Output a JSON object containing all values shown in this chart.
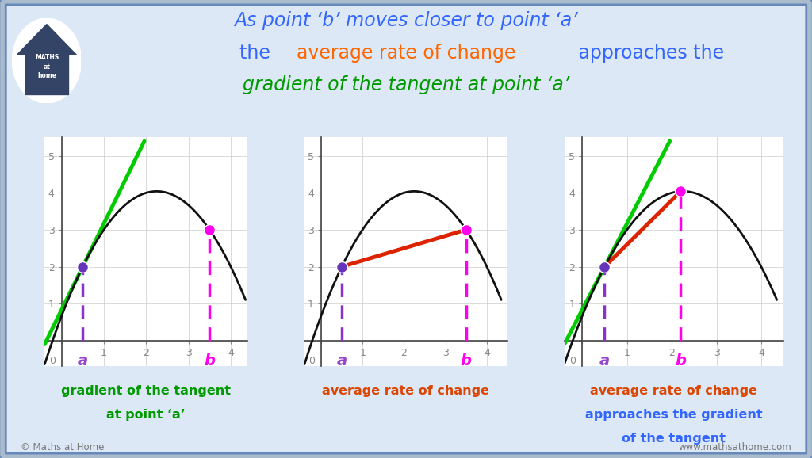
{
  "bg_color": "#dce8f5",
  "plot_bg": "#ffffff",
  "border_color": "#6688bb",
  "curve_color": "#111111",
  "tangent_color": "#00cc00",
  "secant_color": "#dd2200",
  "point_a_color": "#6633bb",
  "point_b_color": "#ff00ee",
  "dashed_a_color": "#8833cc",
  "dashed_b_color": "#ff00ee",
  "label_a_color": "#9944cc",
  "label_b_color": "#ff00ee",
  "title1_color": "#3366ff",
  "title1_b_color": "#ff44cc",
  "title1_a_color": "#ff44cc",
  "title2_main_color": "#3366ff",
  "title2_highlight_color": "#ff6600",
  "title3_color": "#009900",
  "footer_color": "#777777",
  "caption1_color": "#009900",
  "caption2_color": "#dd4400",
  "caption3_line1_color": "#dd4400",
  "caption3_line2_color": "#3366ff",
  "caption3_line3_color": "#3366ff",
  "xa": 0.5,
  "ya": 2.0,
  "xb_far": 3.5,
  "xb_close": 2.2,
  "footer_left": "© Maths at Home",
  "footer_right": "www.mathsathome.com",
  "graph1_xlim": [
    -0.3,
    4.3
  ],
  "graph1_ylim": [
    -0.6,
    5.4
  ],
  "graph2_xlim": [
    -0.3,
    4.5
  ],
  "graph2_ylim": [
    -0.6,
    5.4
  ],
  "graph3_xlim": [
    -0.3,
    4.5
  ],
  "graph3_ylim": [
    -0.6,
    5.4
  ]
}
